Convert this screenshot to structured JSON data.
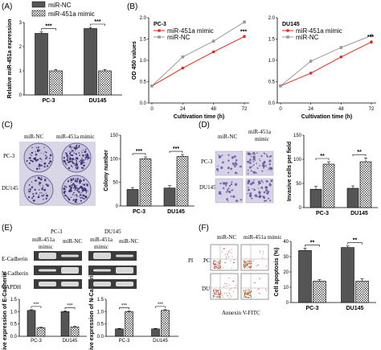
{
  "colors": {
    "nc": "#555555",
    "mimic": "#ffffff",
    "red": "#e8261c",
    "gray": "#9a9a9a",
    "blot": "#3b3b3b"
  },
  "panel_labels": [
    "(A)",
    "(B)",
    "(C)",
    "(D)",
    "(E)",
    "(F)"
  ],
  "legend_a": {
    "nc": "miR-NC",
    "mimic": "miR-451a mimic"
  },
  "chart_data": [
    {
      "panel": "A",
      "type": "bar",
      "categories": [
        "PC-3",
        "DU145"
      ],
      "series": [
        {
          "name": "miR-NC",
          "values": [
            2.55,
            2.75
          ],
          "err": [
            0.06,
            0.05
          ]
        },
        {
          "name": "miR-451a mimic",
          "values": [
            1.0,
            1.0
          ],
          "err": [
            0.05,
            0.05
          ]
        }
      ],
      "ylabel": "Relative miR-451a expression",
      "ylim": [
        0,
        3
      ],
      "yticks": [
        "0",
        "1",
        "2",
        "3"
      ],
      "significance": [
        "***",
        "***"
      ]
    },
    {
      "panel": "B",
      "type": "line",
      "title": "PC-3",
      "x": [
        0,
        24,
        48,
        72
      ],
      "xticks": [
        "0",
        "24",
        "48",
        "72"
      ],
      "series": [
        {
          "name": "miR-451a mimic",
          "values": [
            0.4,
            0.82,
            1.2,
            1.56
          ],
          "err": [
            0.02,
            0.03,
            0.03,
            0.04
          ]
        },
        {
          "name": "miR-NC",
          "values": [
            0.4,
            1.08,
            1.45,
            1.9
          ],
          "err": [
            0.02,
            0.03,
            0.04,
            0.04
          ]
        }
      ],
      "xlabel": "Cultivation time (h)",
      "ylabel": "OD 450 values",
      "ylim": [
        0,
        2
      ],
      "yticks": [
        "0.0",
        "0.5",
        "1.0",
        "1.5",
        "2.0"
      ],
      "significance": "***"
    },
    {
      "panel": "B",
      "type": "line",
      "title": "DU145",
      "x": [
        0,
        24,
        48,
        72
      ],
      "xticks": [
        "0",
        "24",
        "48",
        "72"
      ],
      "series": [
        {
          "name": "miR-451a mimic",
          "values": [
            0.4,
            0.7,
            1.08,
            1.43
          ],
          "err": [
            0.02,
            0.03,
            0.03,
            0.04
          ]
        },
        {
          "name": "miR-NC",
          "values": [
            0.4,
            0.98,
            1.3,
            1.58
          ],
          "err": [
            0.02,
            0.03,
            0.04,
            0.04
          ]
        }
      ],
      "xlabel": "Cultivation time (h)",
      "ylim": [
        0,
        2
      ],
      "yticks": [
        "0.0",
        "0.5",
        "1.0",
        "1.5",
        "2.0"
      ],
      "significance": "***"
    },
    {
      "panel": "C",
      "type": "bar",
      "categories": [
        "PC-3",
        "DU145"
      ],
      "series": [
        {
          "name": "miR-NC",
          "values": [
            35,
            38
          ],
          "err": [
            4,
            5
          ]
        },
        {
          "name": "miR-451a mimic",
          "values": [
            100,
            105
          ],
          "err": [
            4,
            4
          ]
        }
      ],
      "ylabel": "Colony number",
      "ylim": [
        0,
        150
      ],
      "yticks": [
        "0",
        "50",
        "100",
        "150"
      ],
      "significance": [
        "***",
        "***"
      ]
    },
    {
      "panel": "D",
      "type": "bar",
      "categories": [
        "PC-3",
        "DU145"
      ],
      "series": [
        {
          "name": "miR-NC",
          "values": [
            38,
            40
          ],
          "err": [
            6,
            5
          ]
        },
        {
          "name": "miR-451a mimic",
          "values": [
            90,
            95
          ],
          "err": [
            5,
            8
          ]
        }
      ],
      "ylabel": "Invasive cells per field",
      "ylim": [
        0,
        150
      ],
      "yticks": [
        "0",
        "50",
        "100",
        "150"
      ],
      "significance": [
        "**",
        "**"
      ]
    },
    {
      "panel": "E",
      "type": "bar",
      "categories": [
        "PC-3",
        "DU145"
      ],
      "series": [
        {
          "name": "miR-NC",
          "values": [
            1.05,
            1.0
          ],
          "err": [
            0.03,
            0.03
          ]
        },
        {
          "name": "miR-451a mimic",
          "values": [
            0.35,
            0.38
          ],
          "err": [
            0.02,
            0.02
          ]
        }
      ],
      "ylabel": "Relative expression of E-Cadherin",
      "ylim": [
        0,
        1.5
      ],
      "yticks": [
        "0.0",
        "0.5",
        "1.0",
        "1.5"
      ],
      "significance": [
        "***",
        "***"
      ]
    },
    {
      "panel": "E",
      "type": "bar",
      "categories": [
        "PC-3",
        "DU145"
      ],
      "series": [
        {
          "name": "miR-NC",
          "values": [
            0.3,
            0.3
          ],
          "err": [
            0.02,
            0.02
          ]
        },
        {
          "name": "miR-451a mimic",
          "values": [
            1.0,
            1.05
          ],
          "err": [
            0.03,
            0.03
          ]
        }
      ],
      "ylabel": "Relative expression of N-Cadherin",
      "ylim": [
        0,
        1.5
      ],
      "yticks": [
        "0.0",
        "0.5",
        "1.0",
        "1.5"
      ],
      "significance": [
        "***",
        "***"
      ]
    },
    {
      "panel": "F",
      "type": "bar",
      "categories": [
        "PC-3",
        "DU145"
      ],
      "series": [
        {
          "name": "miR-NC",
          "values": [
            34,
            36
          ],
          "err": [
            1.5,
            1.0
          ]
        },
        {
          "name": "miR-451a mimic",
          "values": [
            14,
            14
          ],
          "err": [
            1.0,
            1.5
          ]
        }
      ],
      "ylabel": "Cell apoptosis (%)",
      "ylim": [
        0,
        40
      ],
      "yticks": [
        "0",
        "10",
        "20",
        "30",
        "40"
      ],
      "significance": [
        "**",
        "**"
      ]
    }
  ],
  "panel_c_images": {
    "cols": [
      "miR-NC",
      "miR-451a mimic"
    ],
    "rows": [
      "PC-3",
      "DU145"
    ]
  },
  "panel_d_images": {
    "cols": [
      "miR-NC",
      "miR-451a",
      "mimic"
    ],
    "rows": [
      "PC-3",
      "DU145"
    ]
  },
  "panel_e_blot": {
    "groups": [
      "PC-3",
      "DU145"
    ],
    "col_top": [
      "miR-451a",
      "miR-451a"
    ],
    "col_bottom": [
      "mimic",
      "miR-NC",
      "mimic",
      "miR-NC"
    ],
    "rows": [
      "E-Cadherin",
      "N-Cadherin",
      "GAPDH"
    ]
  },
  "panel_f_images": {
    "cols": [
      "miR-NC",
      "miR-451a mimic"
    ],
    "rows": [
      "PC-3",
      "DU145"
    ],
    "ylabel": "PI",
    "xlabel": "Annexin V-FITC"
  }
}
